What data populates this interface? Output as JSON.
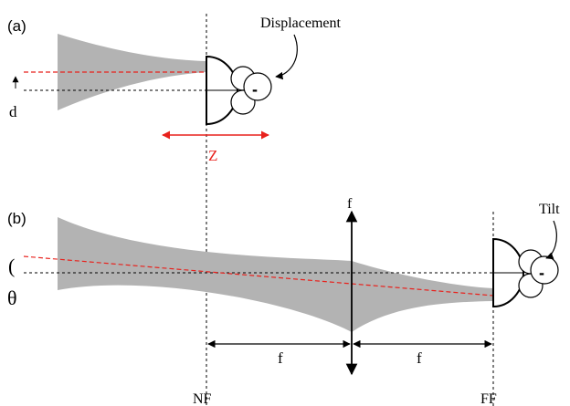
{
  "panel_a": {
    "label": "(a)",
    "displacement_label": "Displacement",
    "offset_label": "d",
    "axial_label": "Z",
    "sign": "-"
  },
  "panel_b": {
    "label": "(b)",
    "lens_label": "f",
    "tilt_label": "Tilt",
    "angle_label": "θ",
    "bracket_glyph": "(",
    "focal_label_left": "f",
    "focal_label_right": "f",
    "near_field_label": "NF",
    "far_field_label": "FF",
    "sign": "-"
  },
  "colors": {
    "beam": "#b3b3b3",
    "ideal_axis": "#000000",
    "perturbed_axis": "#e8211c",
    "accent": "#e8211c",
    "ink": "#000000"
  }
}
